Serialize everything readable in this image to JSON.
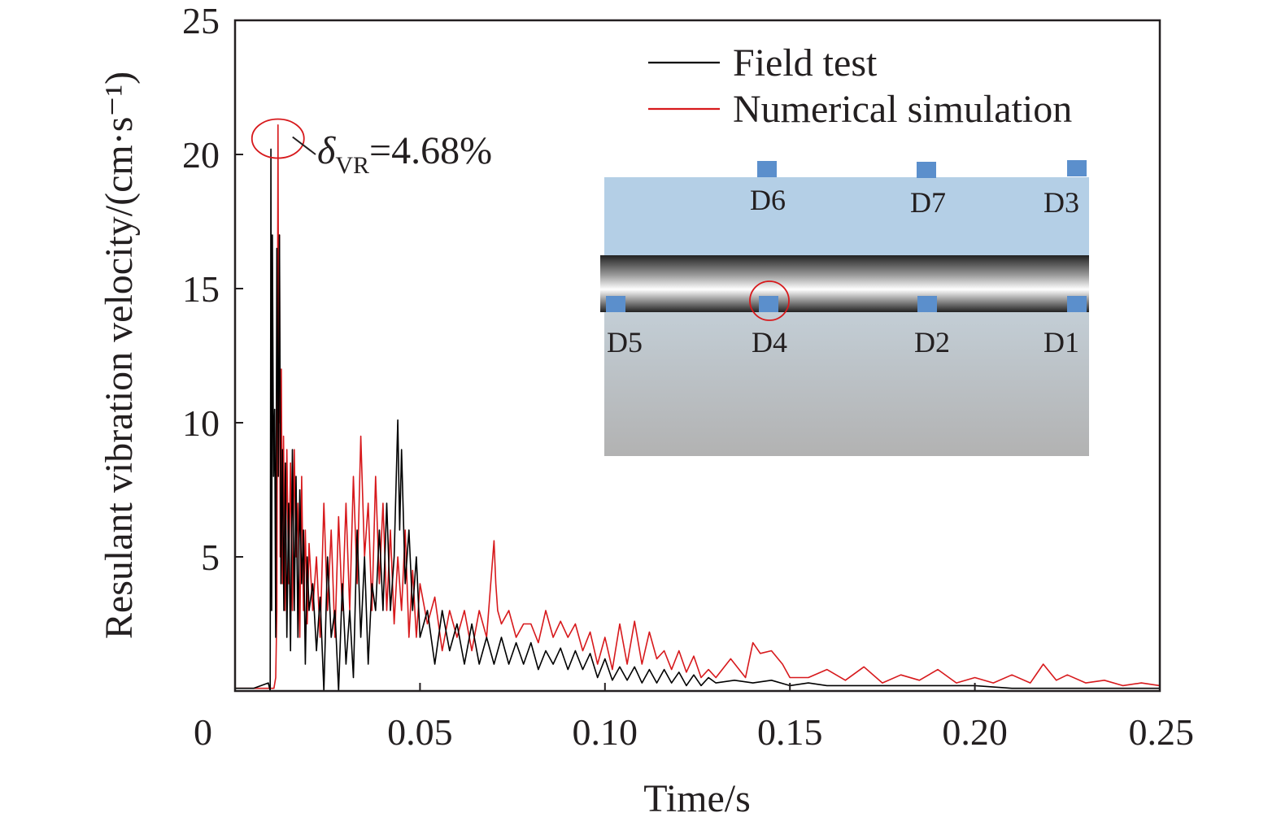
{
  "chart_data": {
    "type": "line",
    "xlabel": "Time/s",
    "ylabel": "Resulant vibration velocity/(cm·s⁻¹)",
    "xlim": [
      0,
      0.25
    ],
    "ylim": [
      0,
      25
    ],
    "x_ticks": [
      "0",
      "0.05",
      "0.10",
      "0.15",
      "0.20",
      "0.25"
    ],
    "x_tick_values": [
      0,
      0.05,
      0.1,
      0.15,
      0.2,
      0.25
    ],
    "y_ticks": [
      "5",
      "10",
      "15",
      "20",
      "25"
    ],
    "y_tick_values": [
      5,
      10,
      15,
      20,
      25
    ],
    "grid": false,
    "legend_position": "top-right",
    "series": [
      {
        "name": "Field test",
        "color": "#000000",
        "x": [
          0,
          0.005,
          0.009,
          0.0095,
          0.0097,
          0.0099,
          0.0101,
          0.0104,
          0.0107,
          0.011,
          0.0113,
          0.0117,
          0.012,
          0.0124,
          0.0128,
          0.0132,
          0.0136,
          0.014,
          0.0145,
          0.015,
          0.0155,
          0.016,
          0.0165,
          0.017,
          0.0175,
          0.018,
          0.0185,
          0.019,
          0.0195,
          0.02,
          0.021,
          0.022,
          0.023,
          0.024,
          0.025,
          0.026,
          0.027,
          0.028,
          0.029,
          0.03,
          0.031,
          0.032,
          0.033,
          0.034,
          0.035,
          0.036,
          0.037,
          0.038,
          0.039,
          0.04,
          0.041,
          0.042,
          0.043,
          0.044,
          0.0445,
          0.045,
          0.046,
          0.047,
          0.048,
          0.049,
          0.05,
          0.052,
          0.054,
          0.056,
          0.058,
          0.06,
          0.062,
          0.064,
          0.066,
          0.068,
          0.07,
          0.072,
          0.074,
          0.076,
          0.078,
          0.08,
          0.082,
          0.084,
          0.086,
          0.088,
          0.09,
          0.092,
          0.094,
          0.096,
          0.098,
          0.1,
          0.102,
          0.104,
          0.106,
          0.108,
          0.11,
          0.112,
          0.114,
          0.116,
          0.118,
          0.12,
          0.122,
          0.124,
          0.126,
          0.128,
          0.13,
          0.135,
          0.14,
          0.145,
          0.15,
          0.155,
          0.16,
          0.17,
          0.18,
          0.19,
          0.2,
          0.21,
          0.22,
          0.23,
          0.24,
          0.25
        ],
        "y": [
          0.1,
          0.1,
          0.3,
          0.0,
          20.2,
          3.0,
          17.0,
          8.0,
          10.5,
          2.0,
          16.5,
          8.0,
          17.0,
          4.0,
          9.0,
          3.0,
          8.5,
          2.0,
          7.0,
          1.5,
          9.0,
          3.0,
          8.0,
          2.0,
          7.5,
          4.0,
          6.0,
          1.0,
          5.0,
          3.0,
          4.0,
          1.5,
          3.5,
          0.0,
          5.0,
          2.0,
          3.0,
          0.0,
          4.0,
          1.0,
          3.0,
          0.5,
          6.0,
          2.0,
          5.0,
          1.0,
          4.0,
          3.0,
          6.0,
          3.0,
          7.0,
          3.0,
          5.0,
          10.1,
          6.0,
          9.0,
          4.0,
          6.0,
          3.0,
          5.0,
          2.0,
          3.0,
          1.0,
          3.0,
          1.5,
          2.5,
          1.0,
          2.5,
          1.0,
          2.0,
          1.0,
          2.0,
          1.0,
          1.8,
          1.0,
          1.8,
          0.8,
          1.5,
          1.0,
          1.6,
          0.8,
          1.5,
          0.8,
          1.4,
          0.5,
          1.2,
          0.4,
          0.9,
          0.4,
          0.9,
          0.3,
          0.8,
          0.3,
          0.8,
          0.3,
          0.7,
          0.2,
          0.6,
          0.2,
          0.5,
          0.3,
          0.4,
          0.3,
          0.4,
          0.2,
          0.3,
          0.2,
          0.2,
          0.2,
          0.2,
          0.2,
          0.1,
          0.1,
          0.1,
          0.1,
          0.1
        ]
      },
      {
        "name": "Numerical simulation",
        "color": "#d7191c",
        "x": [
          0,
          0.0105,
          0.011,
          0.0113,
          0.0116,
          0.0118,
          0.012,
          0.0122,
          0.0125,
          0.0128,
          0.0131,
          0.0135,
          0.014,
          0.0145,
          0.015,
          0.0155,
          0.016,
          0.0165,
          0.017,
          0.0175,
          0.018,
          0.0185,
          0.019,
          0.0195,
          0.02,
          0.021,
          0.022,
          0.023,
          0.024,
          0.025,
          0.026,
          0.027,
          0.028,
          0.029,
          0.03,
          0.031,
          0.032,
          0.033,
          0.034,
          0.035,
          0.036,
          0.037,
          0.038,
          0.039,
          0.04,
          0.041,
          0.042,
          0.043,
          0.044,
          0.045,
          0.046,
          0.047,
          0.048,
          0.049,
          0.05,
          0.052,
          0.054,
          0.056,
          0.058,
          0.06,
          0.062,
          0.064,
          0.066,
          0.068,
          0.07,
          0.0705,
          0.071,
          0.072,
          0.074,
          0.076,
          0.078,
          0.08,
          0.082,
          0.084,
          0.086,
          0.088,
          0.09,
          0.092,
          0.094,
          0.096,
          0.098,
          0.1,
          0.102,
          0.104,
          0.106,
          0.108,
          0.11,
          0.112,
          0.114,
          0.116,
          0.118,
          0.12,
          0.122,
          0.124,
          0.126,
          0.128,
          0.13,
          0.134,
          0.138,
          0.14,
          0.142,
          0.145,
          0.148,
          0.15,
          0.155,
          0.16,
          0.165,
          0.17,
          0.175,
          0.18,
          0.185,
          0.19,
          0.195,
          0.2,
          0.205,
          0.21,
          0.215,
          0.2185,
          0.222,
          0.225,
          0.23,
          0.235,
          0.24,
          0.245,
          0.25
        ],
        "y": [
          0.1,
          0.1,
          0.5,
          3.0,
          21.1,
          10.0,
          17.0,
          5.0,
          12.0,
          4.0,
          9.5,
          3.0,
          9.0,
          4.0,
          8.5,
          3.0,
          9.0,
          5.0,
          7.0,
          2.0,
          8.0,
          3.0,
          6.0,
          2.5,
          5.5,
          3.0,
          5.0,
          2.0,
          7.0,
          3.0,
          6.0,
          2.0,
          6.5,
          3.0,
          7.0,
          3.0,
          8.0,
          4.0,
          9.5,
          5.0,
          7.0,
          3.0,
          8.0,
          4.0,
          7.0,
          3.0,
          6.0,
          2.5,
          5.0,
          3.0,
          6.0,
          2.0,
          4.5,
          2.0,
          4.0,
          2.5,
          3.5,
          1.5,
          3.0,
          2.0,
          3.0,
          1.5,
          3.0,
          2.0,
          5.6,
          4.0,
          3.0,
          2.5,
          3.0,
          2.0,
          2.5,
          2.5,
          1.8,
          3.0,
          2.0,
          2.6,
          2.0,
          2.5,
          1.5,
          2.2,
          1.0,
          2.0,
          0.8,
          2.5,
          1.0,
          2.6,
          1.0,
          2.2,
          1.2,
          1.5,
          0.8,
          1.5,
          0.7,
          1.3,
          0.5,
          0.8,
          0.5,
          1.2,
          0.5,
          1.8,
          1.4,
          1.5,
          1.0,
          0.5,
          0.5,
          0.8,
          0.4,
          0.9,
          0.3,
          0.6,
          0.4,
          0.8,
          0.3,
          0.5,
          0.3,
          0.6,
          0.3,
          1.0,
          0.4,
          0.6,
          0.3,
          0.4,
          0.2,
          0.3,
          0.2
        ]
      }
    ],
    "annotation": {
      "symbol": "δ",
      "subscript": "VR",
      "value_text": "=4.68%",
      "point_x": 0.0116,
      "point_y": 20.5
    },
    "inset": {
      "sensor_color": "#5b8fcc",
      "highlight_color": "#d7191c",
      "top_labels": [
        "D6",
        "D7",
        "D3"
      ],
      "bottom_labels": [
        "D5",
        "D4",
        "D2",
        "D1"
      ],
      "highlighted": "D4"
    }
  }
}
